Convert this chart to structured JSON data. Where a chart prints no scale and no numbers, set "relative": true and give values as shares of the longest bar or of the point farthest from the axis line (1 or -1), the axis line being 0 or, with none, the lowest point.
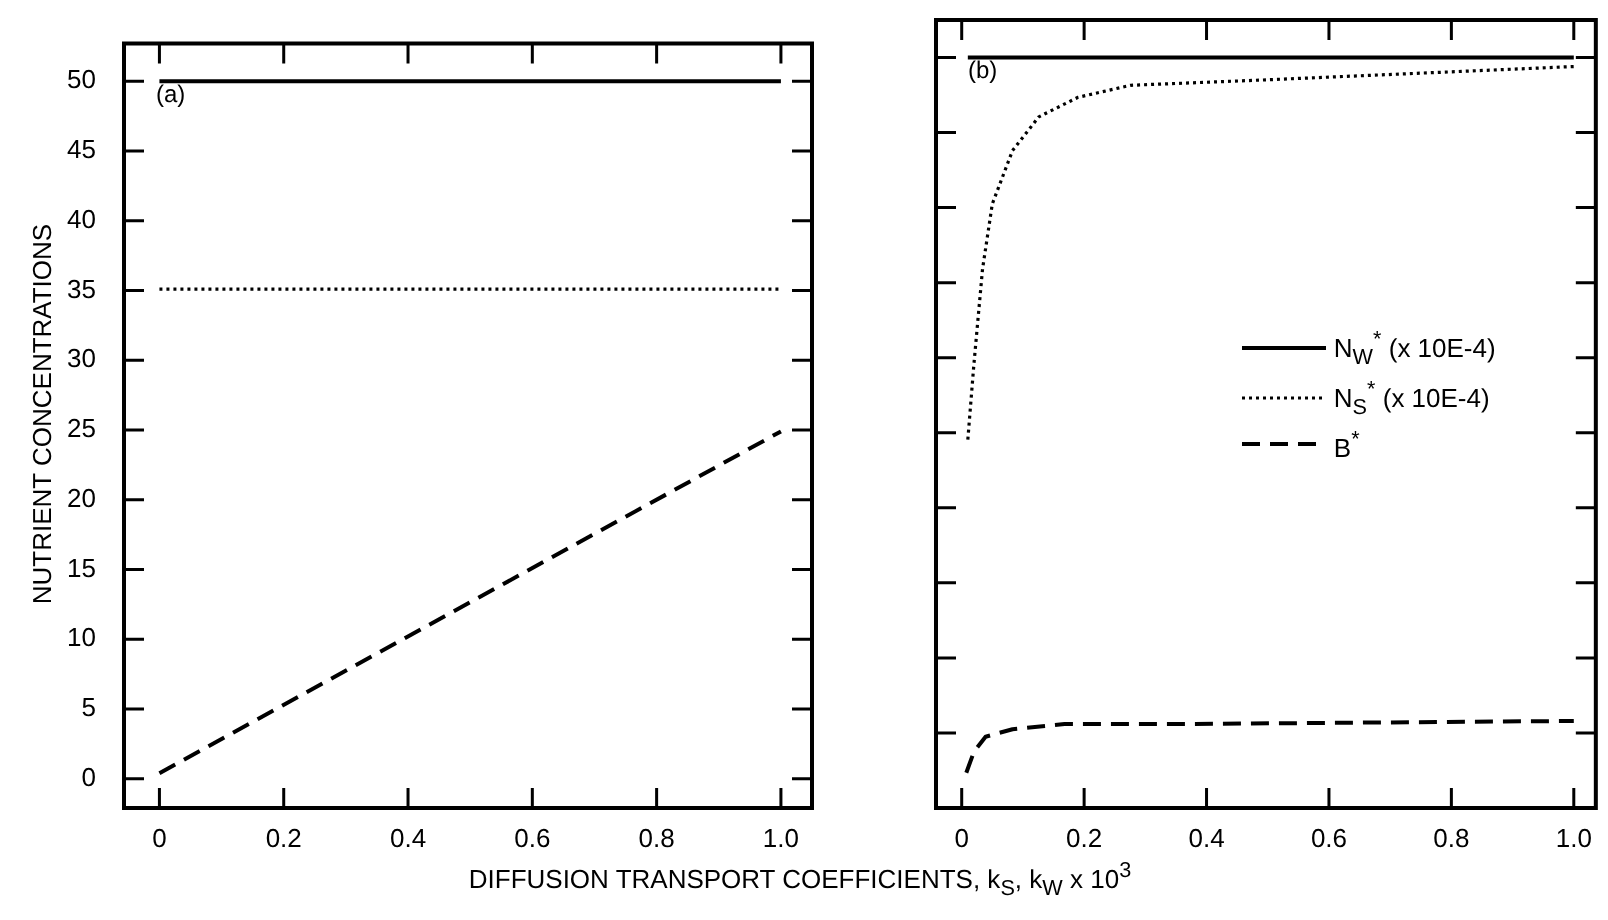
{
  "chart_data": [
    {
      "type": "line",
      "ylabel": "NUTRIENT CONCENTRATIONS",
      "xlabel": "DIFFUSION TRANSPORT COEFFICIENTS, k$_{S}$, k$_{W}$ x 10$^{3}$",
      "annotations": [
        "(a)"
      ],
      "xlim": [
        -0.057,
        1.05
      ],
      "xticks": [
        0,
        0.2,
        0.4,
        0.6,
        0.8,
        {
          "value": 1,
          "label": "1.0"
        }
      ],
      "ylim": [
        -2.1,
        52.7
      ],
      "yticks": [
        0,
        5,
        10,
        15,
        20,
        25,
        30,
        35,
        40,
        45,
        50
      ],
      "marker": "none",
      "legend": false,
      "series": [
        {
          "color": "#000000",
          "line_style": "solid",
          "x": [
            0,
            1
          ],
          "values": [
            50,
            50
          ]
        },
        {
          "color": "#000000",
          "line_style": "dotted",
          "x": [
            0,
            1
          ],
          "values": [
            35.1,
            35.1
          ]
        },
        {
          "color": "#000000",
          "line_style": "dashed",
          "x": [
            0,
            1
          ],
          "values": [
            0.4,
            24.9
          ]
        }
      ]
    },
    {
      "type": "line",
      "annotations": [
        "(b)"
      ],
      "xlim": [
        -0.042,
        1.036
      ],
      "xticks": [
        0,
        0.2,
        0.4,
        0.6,
        0.8,
        {
          "value": 1,
          "label": "1.0"
        }
      ],
      "relative": true,
      "marker": "none",
      "legend": "right",
      "series": [
        {
          "name": "N$_{W}$$^{*}$ (x 10E-4)",
          "color": "#000000",
          "line_style": "solid",
          "x": [
            0.01,
            1.0
          ],
          "values": [
            1,
            1
          ]
        },
        {
          "name": "N$_{S}$$^{*}$ (x 10E-4)",
          "color": "#000000",
          "line_style": "dotted",
          "x": [
            0.01,
            0.02,
            0.034,
            0.05,
            0.083,
            0.126,
            0.19,
            0.276,
            0.49,
            1.0
          ],
          "values": [
            0.491,
            0.592,
            0.718,
            0.805,
            0.876,
            0.921,
            0.947,
            0.963,
            0.97,
            0.988
          ]
        },
        {
          "name": "B$^{*}$",
          "color": "#000000",
          "line_style": "dashed",
          "x": [
            0.0075,
            0.02,
            0.039,
            0.083,
            0.168,
            0.38,
            1.0
          ],
          "values": [
            0.047,
            0.075,
            0.095,
            0.105,
            0.112,
            0.112,
            0.116
          ]
        }
      ]
    }
  ]
}
